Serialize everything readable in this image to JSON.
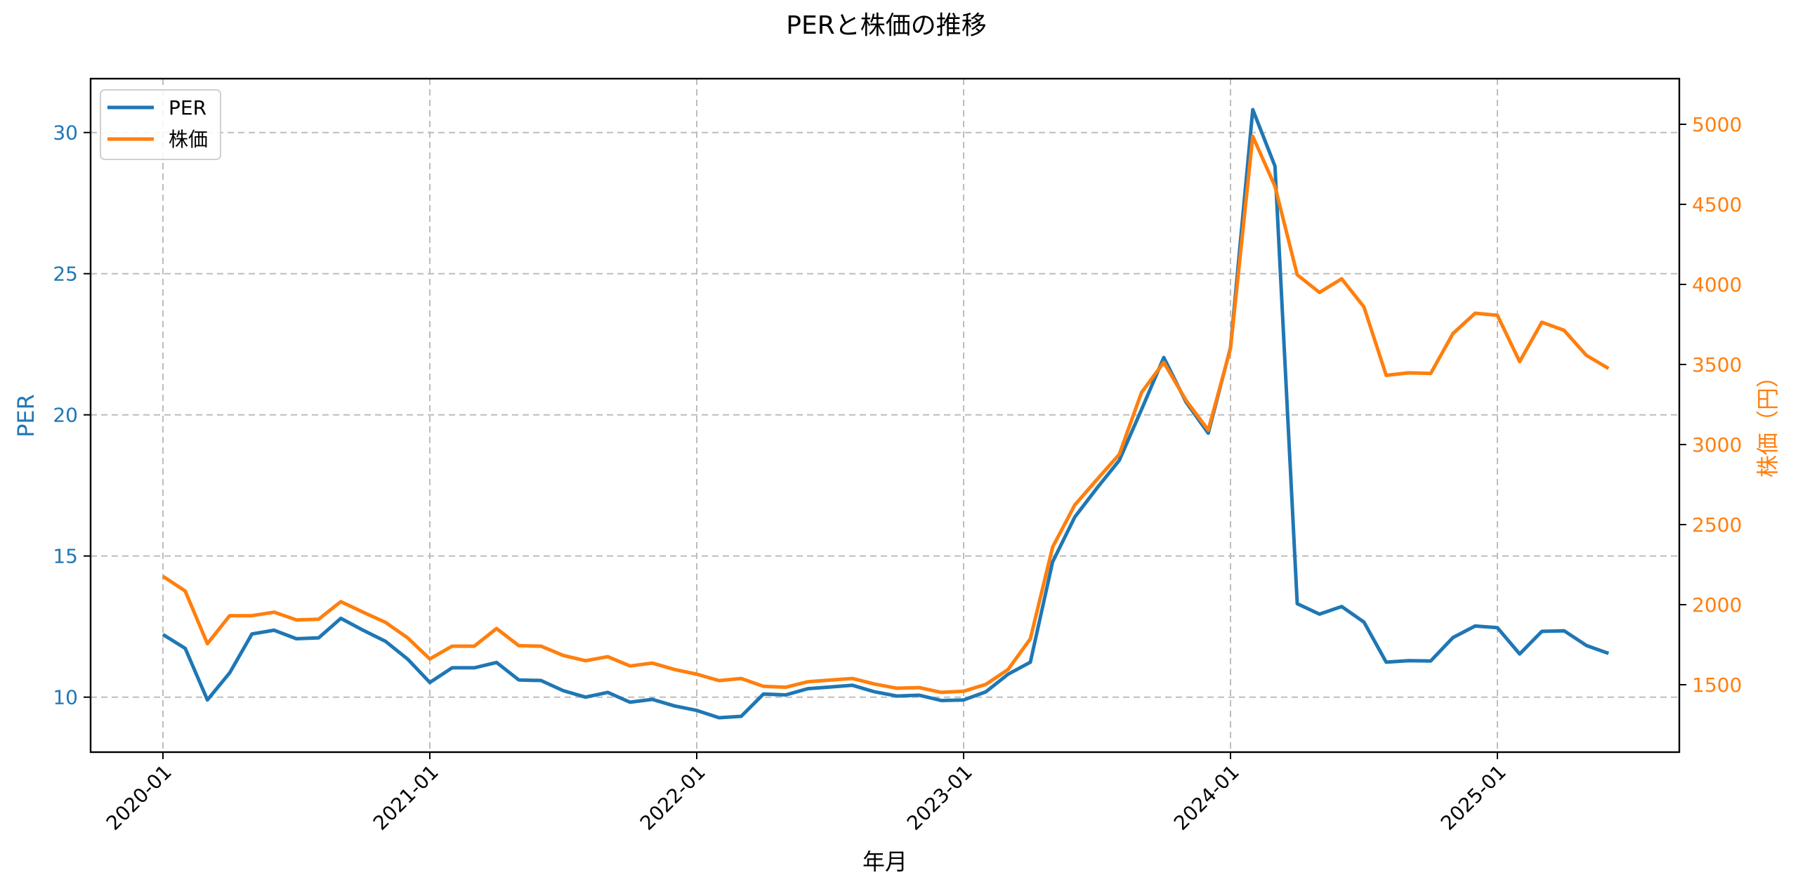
{
  "chart_data": {
    "type": "line",
    "title": "PERと株価の推移",
    "xlabel": "年月",
    "ylabel_left": "PER",
    "ylabel_right": "株価（円）",
    "x_tick_labels": [
      "2020-01",
      "2021-01",
      "2022-01",
      "2023-01",
      "2024-01",
      "2025-01"
    ],
    "y_left_ticks": [
      10,
      15,
      20,
      25,
      30
    ],
    "y_right_ticks": [
      1500,
      2000,
      2500,
      3000,
      3500,
      4000,
      4500,
      5000
    ],
    "y_left_range": [
      8.1,
      31.9
    ],
    "y_right_range": [
      1080,
      5260
    ],
    "grid": true,
    "legend_position": "upper left",
    "colors": {
      "PER": "#1f77b4",
      "株価": "#ff7f0e"
    },
    "x": [
      "2020-01",
      "2020-02",
      "2020-03",
      "2020-04",
      "2020-05",
      "2020-06",
      "2020-07",
      "2020-08",
      "2020-09",
      "2020-10",
      "2020-11",
      "2020-12",
      "2021-01",
      "2021-02",
      "2021-03",
      "2021-04",
      "2021-05",
      "2021-06",
      "2021-07",
      "2021-08",
      "2021-09",
      "2021-10",
      "2021-11",
      "2021-12",
      "2022-01",
      "2022-02",
      "2022-03",
      "2022-04",
      "2022-05",
      "2022-06",
      "2022-07",
      "2022-08",
      "2022-09",
      "2022-10",
      "2022-11",
      "2022-12",
      "2023-01",
      "2023-02",
      "2023-03",
      "2023-04",
      "2023-05",
      "2023-06",
      "2023-07",
      "2023-08",
      "2023-09",
      "2023-10",
      "2023-11",
      "2023-12",
      "2024-01",
      "2024-02",
      "2024-03",
      "2024-04",
      "2024-05",
      "2024-06",
      "2024-07",
      "2024-08",
      "2024-09",
      "2024-10",
      "2024-11",
      "2024-12",
      "2025-01",
      "2025-02",
      "2025-03",
      "2025-04",
      "2025-05",
      "2025-06"
    ],
    "series": [
      {
        "name": "PER",
        "axis": "left",
        "values": [
          12.22,
          11.73,
          9.9,
          10.86,
          12.24,
          12.37,
          12.07,
          12.1,
          12.79,
          12.37,
          11.98,
          11.35,
          10.52,
          11.04,
          11.04,
          11.23,
          10.61,
          10.59,
          10.23,
          10.0,
          10.17,
          9.82,
          9.92,
          9.69,
          9.53,
          9.27,
          9.32,
          10.11,
          10.08,
          10.3,
          10.36,
          10.42,
          10.19,
          10.04,
          10.07,
          9.88,
          9.9,
          10.19,
          10.81,
          11.24,
          14.79,
          16.38,
          17.41,
          18.39,
          20.19,
          22.03,
          20.45,
          19.35,
          22.38,
          30.81,
          28.81,
          13.31,
          12.94,
          13.21,
          12.66,
          11.24,
          11.29,
          11.28,
          12.11,
          12.52,
          12.46,
          11.53,
          12.33,
          12.35,
          11.83,
          11.55
        ]
      },
      {
        "name": "株価",
        "axis": "right",
        "values": [
          2177,
          2085,
          1756,
          1931,
          1931,
          1953,
          1905,
          1909,
          2019,
          1953,
          1890,
          1793,
          1661,
          1741,
          1741,
          1851,
          1744,
          1741,
          1683,
          1650,
          1675,
          1617,
          1635,
          1595,
          1566,
          1526,
          1539,
          1490,
          1484,
          1519,
          1529,
          1539,
          1504,
          1478,
          1482,
          1452,
          1459,
          1502,
          1595,
          1787,
          2359,
          2623,
          2782,
          2939,
          3325,
          3513,
          3276,
          3090,
          3601,
          4925,
          4613,
          4060,
          3950,
          4035,
          3859,
          3432,
          3448,
          3444,
          3693,
          3820,
          3807,
          3518,
          3764,
          3713,
          3557,
          3475
        ]
      }
    ]
  },
  "legend": {
    "items": [
      {
        "label": "PER",
        "color": "#1f77b4"
      },
      {
        "label": "株価",
        "color": "#ff7f0e"
      }
    ]
  }
}
